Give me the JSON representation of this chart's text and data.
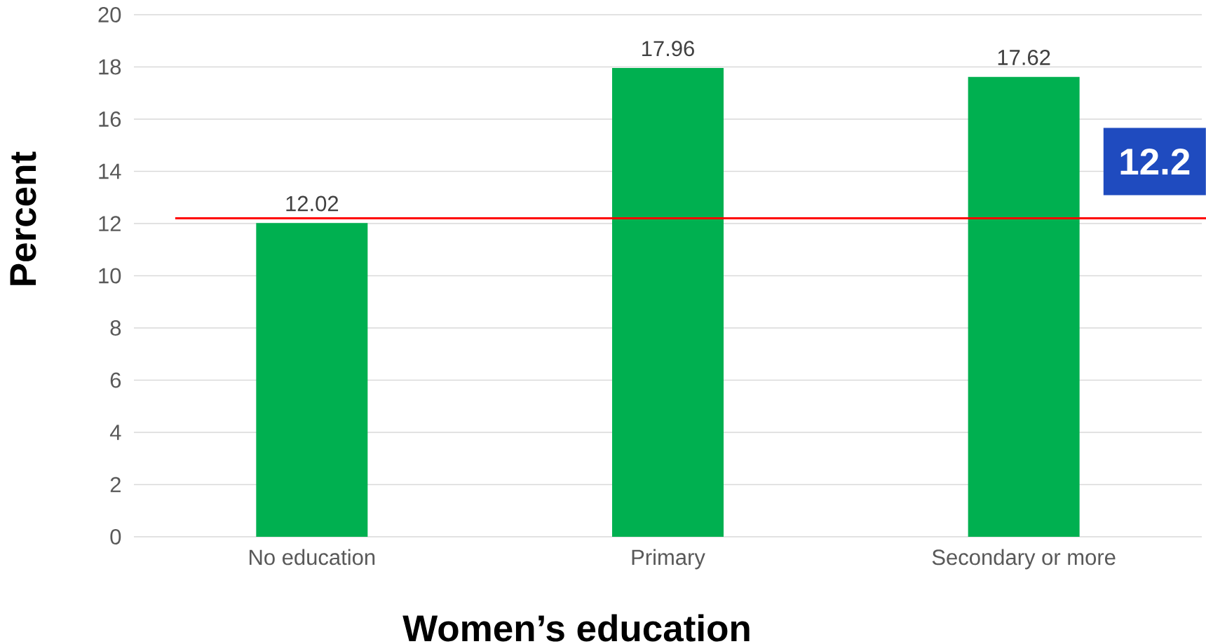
{
  "chart_data": {
    "type": "bar",
    "xlabel": "Women’s education",
    "ylabel": "Percent",
    "categories": [
      "No education",
      "Primary",
      "Secondary or more"
    ],
    "values": [
      12.02,
      17.96,
      17.62
    ],
    "color": "#00b050",
    "ylim": [
      0,
      20
    ],
    "yticks": [
      0,
      2,
      4,
      6,
      8,
      10,
      12,
      14,
      16,
      18,
      20
    ],
    "grid": "y",
    "data_labels": true,
    "ref_lines": [
      {
        "axis": "y",
        "value": 12.2,
        "label": "12.2",
        "color": "#ff0000"
      }
    ]
  }
}
